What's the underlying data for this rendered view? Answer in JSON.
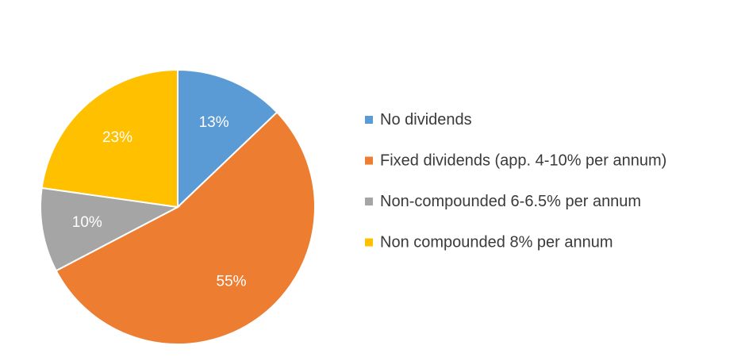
{
  "chart_data": {
    "type": "pie",
    "title": "",
    "categories": [
      "No dividends",
      "Fixed dividends (app. 4-10% per annum)",
      "Non-compounded 6-6.5% per annum",
      "Non compounded 8% per annum"
    ],
    "values": [
      13,
      55,
      10,
      23
    ],
    "data_labels": [
      "13%",
      "55%",
      "10%",
      "23%"
    ],
    "colors": [
      "#5b9bd5",
      "#ed7d31",
      "#a5a5a5",
      "#ffc000"
    ],
    "start_angle_deg": 0,
    "direction": "clockwise",
    "legend_position": "right"
  }
}
